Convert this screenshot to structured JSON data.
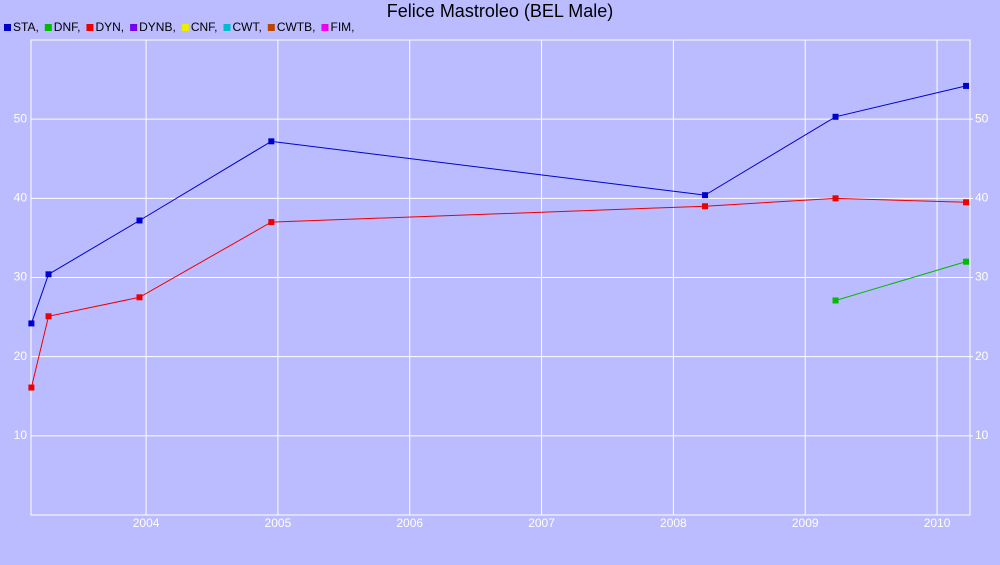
{
  "chart_data": {
    "type": "line",
    "title": "Felice Mastroleo (BEL Male)",
    "series": [
      {
        "name": "STA,",
        "color": "#0000cc",
        "x": [
          2003.13,
          2003.26,
          2003.95,
          2004.95,
          2008.24,
          2009.23,
          2010.22
        ],
        "values": [
          24.2,
          30.4,
          37.2,
          47.2,
          40.4,
          50.3,
          54.2
        ]
      },
      {
        "name": "DNF,",
        "color": "#00bb00",
        "x": [
          2009.23,
          2010.22
        ],
        "values": [
          27.1,
          32.0
        ]
      },
      {
        "name": "DYN,",
        "color": "#ee0000",
        "x": [
          2003.13,
          2003.26,
          2003.95,
          2004.95,
          2008.24,
          2009.23,
          2010.22
        ],
        "values": [
          16.1,
          25.1,
          27.5,
          37.0,
          39.0,
          40.0,
          39.5
        ]
      },
      {
        "name": "DYNB,",
        "color": "#7700ee",
        "x": [],
        "values": []
      },
      {
        "name": "CNF,",
        "color": "#eeee00",
        "x": [],
        "values": []
      },
      {
        "name": "CWT,",
        "color": "#00bbcc",
        "x": [],
        "values": []
      },
      {
        "name": "CWTB,",
        "color": "#bb4400",
        "x": [],
        "values": []
      },
      {
        "name": "FIM,",
        "color": "#ee00ee",
        "x": [],
        "values": []
      }
    ],
    "xlim": [
      2003.127,
      2010.25
    ],
    "xticks": [
      2004,
      2005,
      2006,
      2007,
      2008,
      2009,
      2010
    ],
    "ylim": [
      0,
      60
    ],
    "yticks": [
      10,
      20,
      30,
      40,
      50
    ],
    "y2lim": [
      0,
      60
    ],
    "y2ticks": [
      10,
      20,
      30,
      40,
      50
    ],
    "grid": true
  }
}
